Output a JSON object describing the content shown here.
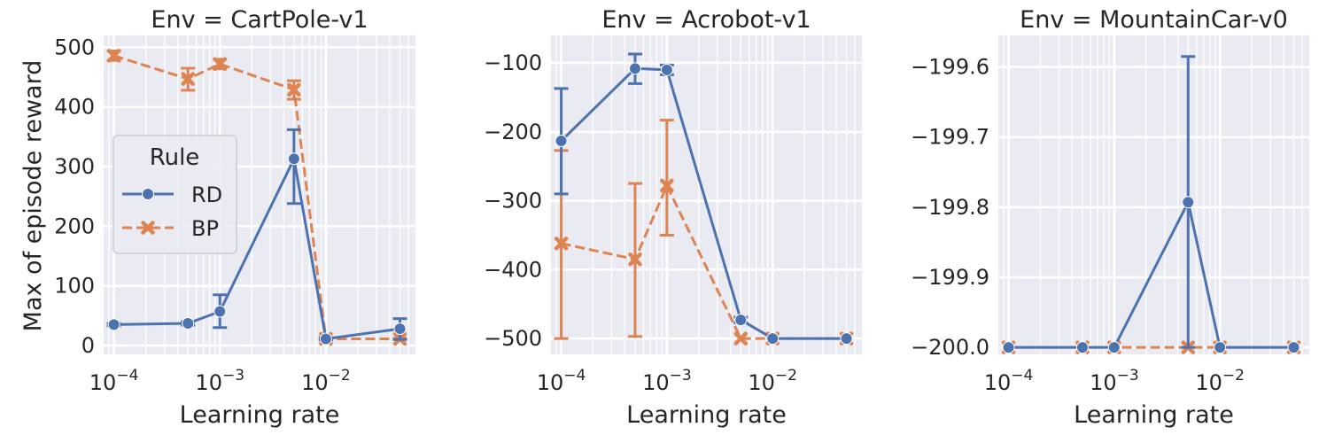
{
  "figure": {
    "ylabel": "Max of episode reward"
  },
  "legend": {
    "title": "Rule",
    "entries": [
      {
        "name": "RD",
        "color": "#4c72b0",
        "marker": "circle",
        "dash": "solid"
      },
      {
        "name": "BP",
        "color": "#dd8452",
        "marker": "x",
        "dash": "dashed"
      }
    ]
  },
  "chart_data": [
    {
      "type": "line",
      "title": "Env = CartPole-v1",
      "xlabel": "Learning rate",
      "xscale": "log",
      "xlim": [
        8e-05,
        0.07
      ],
      "ylim": [
        -15,
        520
      ],
      "yticks": [
        0,
        100,
        200,
        300,
        400,
        500
      ],
      "xticks": [
        {
          "value": 0.0001,
          "base": "10",
          "exp": "−4"
        },
        {
          "value": 0.001,
          "base": "10",
          "exp": "−3"
        },
        {
          "value": 0.01,
          "base": "10",
          "exp": "−2"
        }
      ],
      "grid": true,
      "legend": "center-left",
      "x": [
        0.0001,
        0.0005,
        0.001,
        0.005,
        0.01,
        0.05
      ],
      "series": [
        {
          "name": "RD",
          "values": [
            35,
            37,
            57,
            313,
            11,
            28
          ],
          "err_low": [
            33,
            34,
            30,
            238,
            9,
            10
          ],
          "err_high": [
            37,
            40,
            85,
            362,
            13,
            45
          ]
        },
        {
          "name": "BP",
          "values": [
            486,
            447,
            472,
            429,
            11,
            11
          ],
          "err_low": [
            478,
            428,
            464,
            413,
            10,
            10
          ],
          "err_high": [
            494,
            465,
            480,
            444,
            12,
            12
          ]
        }
      ]
    },
    {
      "type": "line",
      "title": "Env = Acrobot-v1",
      "xlabel": "Learning rate",
      "xscale": "log",
      "xlim": [
        8e-05,
        0.07
      ],
      "ylim": [
        -523,
        -60
      ],
      "yticks": [
        -500,
        -400,
        -300,
        -200,
        -100
      ],
      "xticks": [
        {
          "value": 0.0001,
          "base": "10",
          "exp": "−4"
        },
        {
          "value": 0.001,
          "base": "10",
          "exp": "−3"
        },
        {
          "value": 0.01,
          "base": "10",
          "exp": "−2"
        }
      ],
      "grid": true,
      "x": [
        0.0001,
        0.0005,
        0.001,
        0.005,
        0.01,
        0.05
      ],
      "series": [
        {
          "name": "RD",
          "values": [
            -213,
            -108,
            -110,
            -473,
            -500,
            -500
          ],
          "err_low": [
            -290,
            -130,
            -117,
            -477,
            -500,
            -500
          ],
          "err_high": [
            -137,
            -87,
            -103,
            -469,
            -500,
            -500
          ]
        },
        {
          "name": "BP",
          "values": [
            -362,
            -385,
            -278,
            -500,
            -500,
            -500
          ],
          "err_low": [
            -500,
            -497,
            -350,
            -500,
            -500,
            -500
          ],
          "err_high": [
            -227,
            -275,
            -183,
            -500,
            -500,
            -500
          ]
        }
      ]
    },
    {
      "type": "line",
      "title": "Env = MountainCar-v0",
      "xlabel": "Learning rate",
      "xscale": "log",
      "xlim": [
        8e-05,
        0.07
      ],
      "ylim": [
        -200.01,
        -199.555
      ],
      "yticks": [
        -200.0,
        -199.9,
        -199.8,
        -199.7,
        -199.6
      ],
      "xticks": [
        {
          "value": 0.0001,
          "base": "10",
          "exp": "−4"
        },
        {
          "value": 0.001,
          "base": "10",
          "exp": "−3"
        },
        {
          "value": 0.01,
          "base": "10",
          "exp": "−2"
        }
      ],
      "grid": true,
      "x": [
        0.0001,
        0.0005,
        0.001,
        0.005,
        0.01,
        0.05
      ],
      "series": [
        {
          "name": "RD",
          "values": [
            -200.0,
            -200.0,
            -200.0,
            -199.793,
            -200.0,
            -200.0
          ],
          "err_low": [
            -200.0,
            -200.0,
            -200.0,
            -200.0,
            -200.0,
            -200.0
          ],
          "err_high": [
            -200.0,
            -200.0,
            -200.0,
            -199.585,
            -200.0,
            -200.0
          ]
        },
        {
          "name": "BP",
          "values": [
            -200.0,
            -200.0,
            -200.0,
            -200.0,
            -200.0,
            -200.0
          ],
          "err_low": [
            -200.0,
            -200.0,
            -200.0,
            -200.0,
            -200.0,
            -200.0
          ],
          "err_high": [
            -200.0,
            -200.0,
            -200.0,
            -200.0,
            -200.0,
            -200.0
          ]
        }
      ]
    }
  ]
}
